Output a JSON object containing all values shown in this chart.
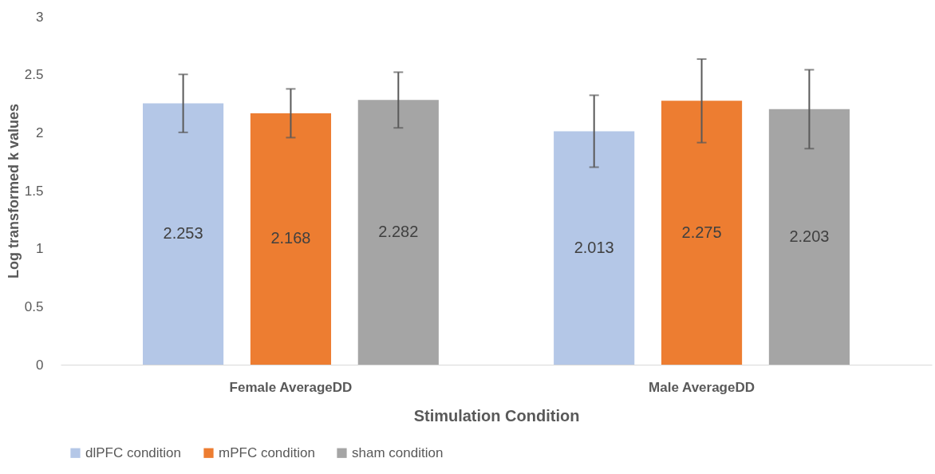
{
  "chart_data": {
    "type": "bar",
    "xlabel": "Stimulation Condition",
    "ylabel": "Log  transformed k values",
    "categories": [
      "Female AverageDD",
      "Male AverageDD"
    ],
    "series": [
      {
        "name": "dlPFC condition",
        "color": "#b4c7e7",
        "values": [
          2.253,
          2.013
        ],
        "errors": [
          0.25,
          0.31
        ]
      },
      {
        "name": "mPFC condition",
        "color": "#ed7d31",
        "values": [
          2.168,
          2.275
        ],
        "errors": [
          0.21,
          0.36
        ]
      },
      {
        "name": "sham condition",
        "color": "#a5a5a5",
        "values": [
          2.282,
          2.203
        ],
        "errors": [
          0.24,
          0.34
        ]
      }
    ],
    "ylim": [
      0,
      3
    ],
    "yticks": [
      0,
      0.5,
      1,
      1.5,
      2,
      2.5,
      3
    ],
    "data_labels": true,
    "legend": "bottom"
  }
}
